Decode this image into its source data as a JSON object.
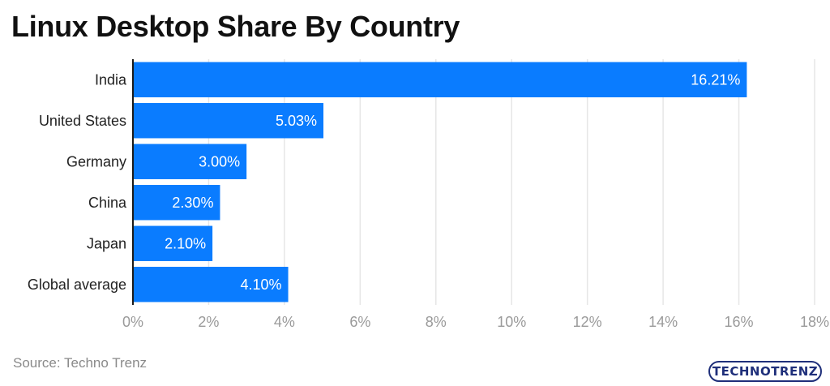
{
  "title": "Linux Desktop Share By Country",
  "source": "Source: Techno Trenz",
  "logo_text": "TECHNOTRENZ",
  "colors": {
    "bar": "#0a7cff",
    "grid": "#e6e6e6",
    "axis": "#1a1a1a",
    "tick_text": "#9a9a9a",
    "category_text": "#222222",
    "value_text": "#ffffff"
  },
  "chart_data": {
    "type": "bar",
    "orientation": "horizontal",
    "categories": [
      "India",
      "United States",
      "Germany",
      "China",
      "Japan",
      "Global average"
    ],
    "values": [
      16.21,
      5.03,
      3.0,
      2.3,
      2.1,
      4.1
    ],
    "value_labels": [
      "16.21%",
      "5.03%",
      "3.00%",
      "2.30%",
      "2.10%",
      "4.10%"
    ],
    "xlim": [
      0,
      18
    ],
    "xticks": [
      0,
      2,
      4,
      6,
      8,
      10,
      12,
      14,
      16,
      18
    ],
    "xtick_labels": [
      "0%",
      "2%",
      "4%",
      "6%",
      "8%",
      "10%",
      "12%",
      "14%",
      "16%",
      "18%"
    ],
    "grid": "vertical",
    "legend": "none"
  }
}
